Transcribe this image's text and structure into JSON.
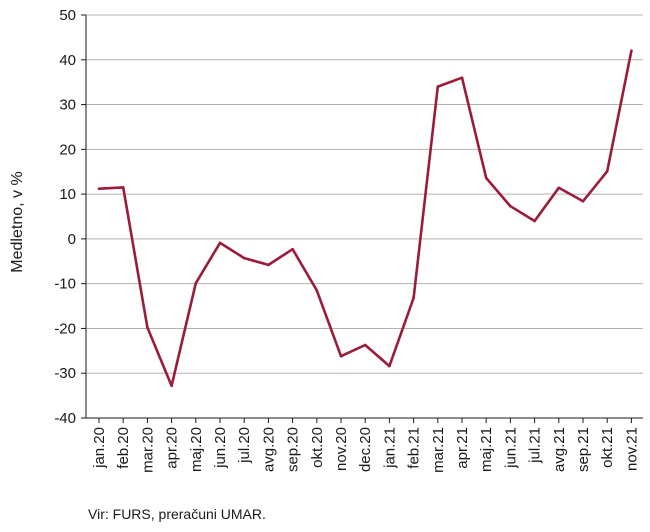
{
  "chart_data": {
    "type": "line",
    "ylabel": "Medletno, v %",
    "ylim": [
      -40,
      50
    ],
    "yticks": [
      -40,
      -30,
      -20,
      -10,
      0,
      10,
      20,
      30,
      40,
      50
    ],
    "ytick_labels": [
      "-40",
      "-30",
      "-20",
      "-10",
      "0",
      "10",
      "20",
      "30",
      "40",
      "50"
    ],
    "grid": true,
    "categories": [
      "jan.20",
      "feb.20",
      "mar.20",
      "apr.20",
      "maj.20",
      "jun.20",
      "jul.20",
      "avg.20",
      "sep.20",
      "okt.20",
      "nov.20",
      "dec.20",
      "jan.21",
      "feb.21",
      "mar.21",
      "apr.21",
      "maj.21",
      "jun.21",
      "jul.21",
      "avg.21",
      "sep.21",
      "okt.21",
      "nov.21"
    ],
    "series": [
      {
        "values": [
          11.2,
          11.5,
          -19.8,
          -32.8,
          -9.9,
          -0.9,
          -4.3,
          -5.8,
          -2.3,
          -11.5,
          -26.2,
          -23.7,
          -28.4,
          -13.2,
          34.0,
          36.0,
          13.6,
          7.3,
          4.0,
          11.4,
          8.4,
          15.1,
          42.0
        ],
        "color": "#9b1b3a"
      }
    ],
    "gridline_color": "#b3b3b3",
    "axis_color": "#1a1a1a"
  },
  "source": "Vir: FURS, preračuni UMAR."
}
